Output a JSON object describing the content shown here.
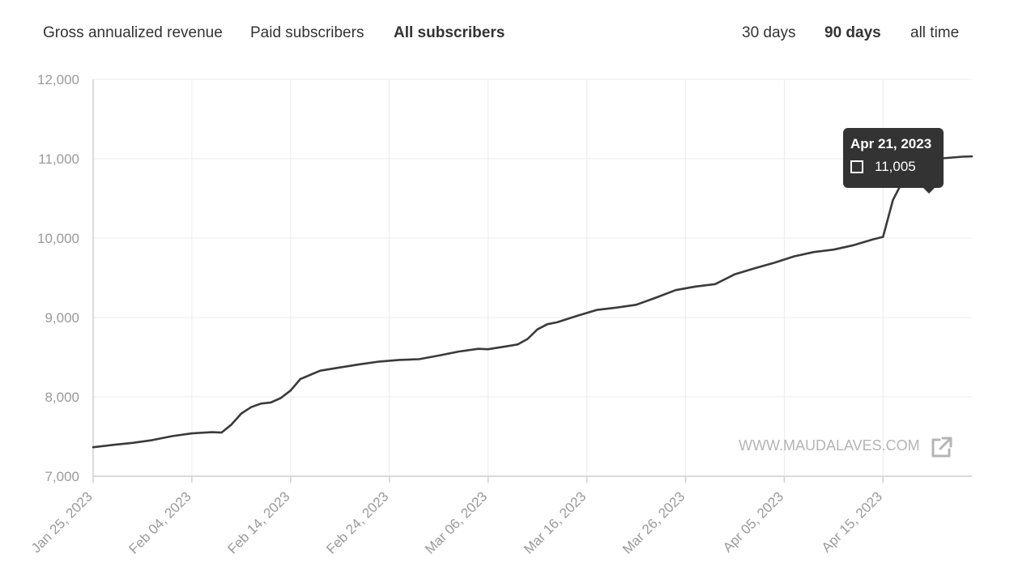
{
  "metric_tabs": [
    {
      "label": "Gross annualized revenue",
      "active": false
    },
    {
      "label": "Paid subscribers",
      "active": false
    },
    {
      "label": "All subscribers",
      "active": true
    }
  ],
  "range_tabs": [
    {
      "label": "30 days",
      "active": false
    },
    {
      "label": "90 days",
      "active": true
    },
    {
      "label": "all time",
      "active": false
    }
  ],
  "watermark": {
    "text": "WWW.MAUDALAVES.COM",
    "icon": "external-link-icon"
  },
  "tooltip": {
    "date": "Apr 21, 2023",
    "value": "11,005"
  },
  "colors": {
    "line": "#3a3a3a",
    "tooltip_bg": "#333333",
    "grid": "#ececec",
    "tick_text": "#9a9a9a"
  },
  "chart_data": {
    "type": "line",
    "title": "",
    "xlabel": "",
    "ylabel": "",
    "ylim": [
      7000,
      12000
    ],
    "yticks": [
      7000,
      8000,
      9000,
      10000,
      11000,
      12000
    ],
    "ytick_labels": [
      "7,000",
      "8,000",
      "9,000",
      "10,000",
      "11,000",
      "12,000"
    ],
    "x_start": "2023-01-25",
    "x_end": "2023-04-24",
    "xtick_labels": [
      "Jan 25, 2023",
      "Feb 04, 2023",
      "Feb 14, 2023",
      "Feb 24, 2023",
      "Mar 06, 2023",
      "Mar 16, 2023",
      "Mar 26, 2023",
      "Apr 05, 2023",
      "Apr 15, 2023"
    ],
    "grid": true,
    "series": [
      {
        "values": [
          [
            "2023-01-25",
            7365
          ],
          [
            "2023-01-27",
            7395
          ],
          [
            "2023-01-29",
            7420
          ],
          [
            "2023-01-31",
            7455
          ],
          [
            "2023-02-02",
            7505
          ],
          [
            "2023-02-04",
            7540
          ],
          [
            "2023-02-06",
            7555
          ],
          [
            "2023-02-07",
            7550
          ],
          [
            "2023-02-08",
            7650
          ],
          [
            "2023-02-09",
            7790
          ],
          [
            "2023-02-10",
            7870
          ],
          [
            "2023-02-11",
            7915
          ],
          [
            "2023-02-12",
            7930
          ],
          [
            "2023-02-13",
            7985
          ],
          [
            "2023-02-14",
            8080
          ],
          [
            "2023-02-15",
            8225
          ],
          [
            "2023-02-17",
            8330
          ],
          [
            "2023-02-19",
            8370
          ],
          [
            "2023-02-21",
            8410
          ],
          [
            "2023-02-23",
            8445
          ],
          [
            "2023-02-25",
            8465
          ],
          [
            "2023-02-27",
            8475
          ],
          [
            "2023-03-01",
            8520
          ],
          [
            "2023-03-03",
            8570
          ],
          [
            "2023-03-05",
            8605
          ],
          [
            "2023-03-06",
            8600
          ],
          [
            "2023-03-08",
            8640
          ],
          [
            "2023-03-09",
            8660
          ],
          [
            "2023-03-10",
            8730
          ],
          [
            "2023-03-11",
            8850
          ],
          [
            "2023-03-12",
            8915
          ],
          [
            "2023-03-13",
            8940
          ],
          [
            "2023-03-15",
            9020
          ],
          [
            "2023-03-17",
            9095
          ],
          [
            "2023-03-19",
            9125
          ],
          [
            "2023-03-21",
            9160
          ],
          [
            "2023-03-23",
            9250
          ],
          [
            "2023-03-25",
            9345
          ],
          [
            "2023-03-27",
            9390
          ],
          [
            "2023-03-29",
            9420
          ],
          [
            "2023-03-31",
            9545
          ],
          [
            "2023-04-02",
            9620
          ],
          [
            "2023-04-04",
            9690
          ],
          [
            "2023-04-06",
            9770
          ],
          [
            "2023-04-08",
            9825
          ],
          [
            "2023-04-10",
            9855
          ],
          [
            "2023-04-12",
            9910
          ],
          [
            "2023-04-14",
            9985
          ],
          [
            "2023-04-15",
            10015
          ],
          [
            "2023-04-16",
            10480
          ],
          [
            "2023-04-17",
            10720
          ],
          [
            "2023-04-18",
            10810
          ],
          [
            "2023-04-19",
            10890
          ],
          [
            "2023-04-21",
            11005
          ],
          [
            "2023-04-22",
            11015
          ],
          [
            "2023-04-23",
            11025
          ],
          [
            "2023-04-24",
            11030
          ]
        ]
      }
    ]
  }
}
